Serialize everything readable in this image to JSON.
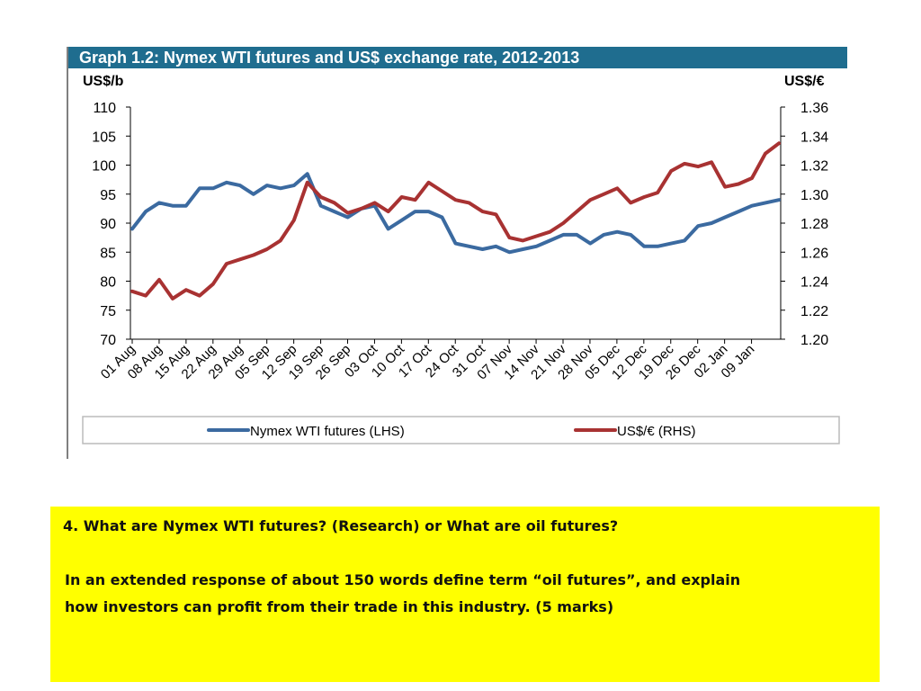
{
  "chart_data": {
    "type": "line",
    "title": "Graph 1.2: Nymex WTI futures and US$ exchange rate, 2012-2013",
    "y_left_label": "US$/b",
    "y_right_label": "US$/€",
    "y_left_range": [
      70,
      110
    ],
    "y_right_range": [
      1.2,
      1.36
    ],
    "y_left_ticks": [
      "110",
      "105",
      "100",
      "95",
      "90",
      "85",
      "80",
      "75",
      "70"
    ],
    "y_right_ticks": [
      "1.36",
      "1.34",
      "1.32",
      "1.30",
      "1.28",
      "1.26",
      "1.24",
      "1.22",
      "1.20"
    ],
    "x_tick_labels": [
      "01 Aug",
      "08 Aug",
      "15 Aug",
      "22 Aug",
      "29 Aug",
      "05 Sep",
      "12 Sep",
      "19 Sep",
      "26 Sep",
      "03 Oct",
      "10 Oct",
      "17 Oct",
      "24 Oct",
      "31 Oct",
      "07 Nov",
      "14 Nov",
      "21 Nov",
      "28 Nov",
      "05 Dec",
      "12 Dec",
      "19 Dec",
      "26 Dec",
      "02 Jan",
      "09 Jan"
    ],
    "x_dates": [
      "01 Aug",
      "03 Aug",
      "08 Aug",
      "10 Aug",
      "15 Aug",
      "17 Aug",
      "22 Aug",
      "24 Aug",
      "29 Aug",
      "31 Aug",
      "05 Sep",
      "07 Sep",
      "12 Sep",
      "14 Sep",
      "19 Sep",
      "21 Sep",
      "26 Sep",
      "28 Sep",
      "03 Oct",
      "05 Oct",
      "10 Oct",
      "12 Oct",
      "17 Oct",
      "19 Oct",
      "24 Oct",
      "26 Oct",
      "31 Oct",
      "02 Nov",
      "07 Nov",
      "09 Nov",
      "14 Nov",
      "16 Nov",
      "21 Nov",
      "23 Nov",
      "28 Nov",
      "30 Nov",
      "05 Dec",
      "07 Dec",
      "12 Dec",
      "14 Dec",
      "19 Dec",
      "21 Dec",
      "26 Dec",
      "28 Dec",
      "02 Jan",
      "04 Jan",
      "09 Jan",
      "11 Jan",
      "15 Jan"
    ],
    "series": [
      {
        "name": "Nymex WTI futures (LHS)",
        "axis": "left",
        "color": "#3b6aa0",
        "values": [
          89,
          92,
          93.5,
          93,
          93,
          96,
          96,
          97,
          96.5,
          95,
          96.5,
          96,
          96.5,
          98.5,
          93,
          92,
          91,
          92.5,
          93,
          89,
          90.5,
          92,
          92,
          91,
          86.5,
          86,
          85.5,
          86,
          85,
          85.5,
          86,
          87,
          88,
          88,
          86.5,
          88,
          88.5,
          88,
          86,
          86,
          86.5,
          87,
          89.5,
          90,
          91,
          92,
          93,
          93.5,
          94
        ]
      },
      {
        "name": "US$/€ (RHS)",
        "axis": "right",
        "color": "#a83232",
        "values": [
          1.233,
          1.23,
          1.241,
          1.228,
          1.234,
          1.23,
          1.238,
          1.252,
          1.255,
          1.258,
          1.262,
          1.268,
          1.282,
          1.308,
          1.298,
          1.294,
          1.287,
          1.29,
          1.294,
          1.288,
          1.298,
          1.296,
          1.308,
          1.302,
          1.296,
          1.294,
          1.288,
          1.286,
          1.27,
          1.268,
          1.271,
          1.274,
          1.28,
          1.288,
          1.296,
          1.3,
          1.304,
          1.294,
          1.298,
          1.301,
          1.316,
          1.321,
          1.319,
          1.322,
          1.305,
          1.307,
          1.311,
          1.328,
          1.335
        ]
      }
    ],
    "legend": [
      "Nymex WTI futures (LHS)",
      "US$/€ (RHS)"
    ],
    "legend_position": "bottom",
    "grid": false
  },
  "question": {
    "line1": "4.   What are Nymex WTI futures?     (Research)   or What are oil futures?",
    "line2": "In an extended response of about 150 words define term “oil futures”, and explain",
    "line3": "how investors can profit from their trade in this industry.    (5 marks)"
  },
  "colors": {
    "title_bar": "#1f6d8f",
    "question_background": "#ffff00"
  }
}
